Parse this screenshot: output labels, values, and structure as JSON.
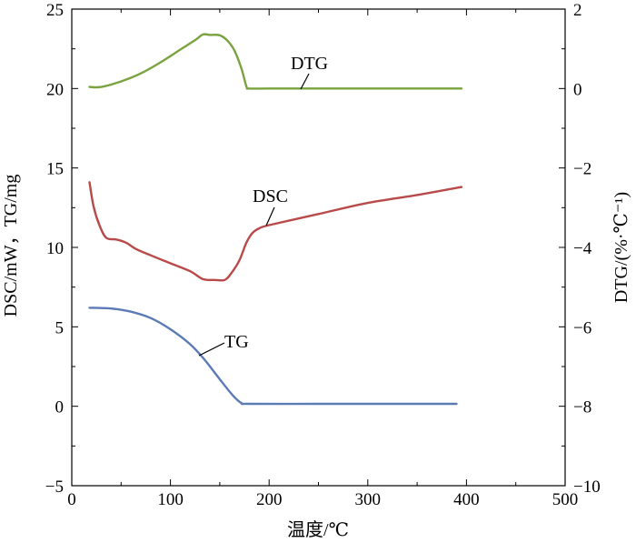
{
  "chart_data": {
    "type": "line",
    "xlabel": "温度/℃",
    "ylabel_left": "DSC/mW，TG/mg",
    "ylabel_right": "DTG/(%·℃⁻¹)",
    "xlim": [
      0,
      500
    ],
    "ylim_left": [
      -5,
      25
    ],
    "ylim_right": [
      -10,
      2
    ],
    "x_ticks": [
      "0",
      "100",
      "200",
      "300",
      "400",
      "500"
    ],
    "y_left_ticks": [
      "−5",
      "0",
      "5",
      "10",
      "15",
      "20",
      "25"
    ],
    "y_right_ticks": [
      "−10",
      "−8",
      "−6",
      "−4",
      "−2",
      "0",
      "2"
    ],
    "series": [
      {
        "name": "DTG",
        "axis": "right",
        "color": "#7aa33f",
        "points": [
          [
            18,
            0.04
          ],
          [
            30,
            0.04
          ],
          [
            50,
            0.18
          ],
          [
            70,
            0.38
          ],
          [
            90,
            0.66
          ],
          [
            110,
            0.98
          ],
          [
            125,
            1.22
          ],
          [
            133,
            1.36
          ],
          [
            140,
            1.35
          ],
          [
            150,
            1.34
          ],
          [
            158,
            1.2
          ],
          [
            165,
            0.95
          ],
          [
            172,
            0.5
          ],
          [
            177,
            0.05
          ],
          [
            180,
            0.0
          ],
          [
            200,
            0.0
          ],
          [
            250,
            0.0
          ],
          [
            300,
            0.0
          ],
          [
            350,
            0.0
          ],
          [
            395,
            0.0
          ]
        ],
        "label": "DTG"
      },
      {
        "name": "DSC",
        "axis": "left",
        "color": "#b84a4a",
        "points": [
          [
            18,
            14.1
          ],
          [
            22,
            12.6
          ],
          [
            28,
            11.4
          ],
          [
            35,
            10.6
          ],
          [
            45,
            10.5
          ],
          [
            55,
            10.3
          ],
          [
            65,
            9.9
          ],
          [
            80,
            9.5
          ],
          [
            100,
            9.0
          ],
          [
            120,
            8.5
          ],
          [
            133,
            8.0
          ],
          [
            145,
            7.95
          ],
          [
            155,
            7.95
          ],
          [
            162,
            8.4
          ],
          [
            170,
            9.2
          ],
          [
            177,
            10.3
          ],
          [
            183,
            10.9
          ],
          [
            190,
            11.2
          ],
          [
            200,
            11.4
          ],
          [
            250,
            12.1
          ],
          [
            300,
            12.8
          ],
          [
            350,
            13.3
          ],
          [
            395,
            13.8
          ]
        ],
        "label": "DSC"
      },
      {
        "name": "TG",
        "axis": "left",
        "color": "#5b7bb5",
        "points": [
          [
            18,
            6.2
          ],
          [
            40,
            6.15
          ],
          [
            60,
            5.95
          ],
          [
            80,
            5.55
          ],
          [
            100,
            4.85
          ],
          [
            120,
            3.9
          ],
          [
            135,
            2.9
          ],
          [
            150,
            1.7
          ],
          [
            163,
            0.7
          ],
          [
            172,
            0.2
          ],
          [
            180,
            0.15
          ],
          [
            250,
            0.15
          ],
          [
            300,
            0.15
          ],
          [
            350,
            0.15
          ],
          [
            390,
            0.15
          ]
        ],
        "label": "TG"
      }
    ]
  }
}
